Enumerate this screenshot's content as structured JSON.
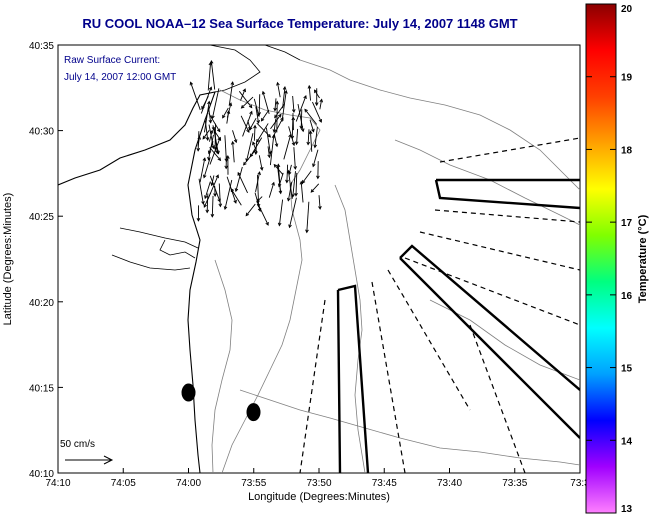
{
  "chart_data": {
    "type": "map",
    "title": "RU COOL  NOAA–12  Sea Surface Temperature:  July 14, 2007 1148 GMT",
    "inset_text": [
      "Raw Surface Current:",
      "July 14, 2007 12:00 GMT"
    ],
    "xlabel": "Longitude (Degrees:Minutes)",
    "ylabel": "Latitude (Degrees:Minutes)",
    "x_ticks": [
      "74:10",
      "74:05",
      "74:00",
      "73:55",
      "73:50",
      "73:45",
      "73:40",
      "73:35",
      "73:3"
    ],
    "y_ticks": [
      "40:35",
      "40:30",
      "40:25",
      "40:20",
      "40:15",
      "40:10"
    ],
    "scale_label": "50 cm/s",
    "colorbar": {
      "label": "Temperature (°C)",
      "min": 13,
      "max": 20,
      "ticks": [
        "20",
        "19",
        "18",
        "17",
        "16",
        "15",
        "14",
        "13"
      ],
      "colors": [
        "#ff80ff",
        "#a000ff",
        "#0000ff",
        "#00a0ff",
        "#00ffff",
        "#00ff80",
        "#80ff00",
        "#ffff00",
        "#ffa000",
        "#ff4000",
        "#ff0000",
        "#8b0000"
      ]
    },
    "markers": [
      {
        "lon": -74.0,
        "lat": 40.245
      },
      {
        "lon": -73.917,
        "lat": 40.226
      }
    ]
  }
}
